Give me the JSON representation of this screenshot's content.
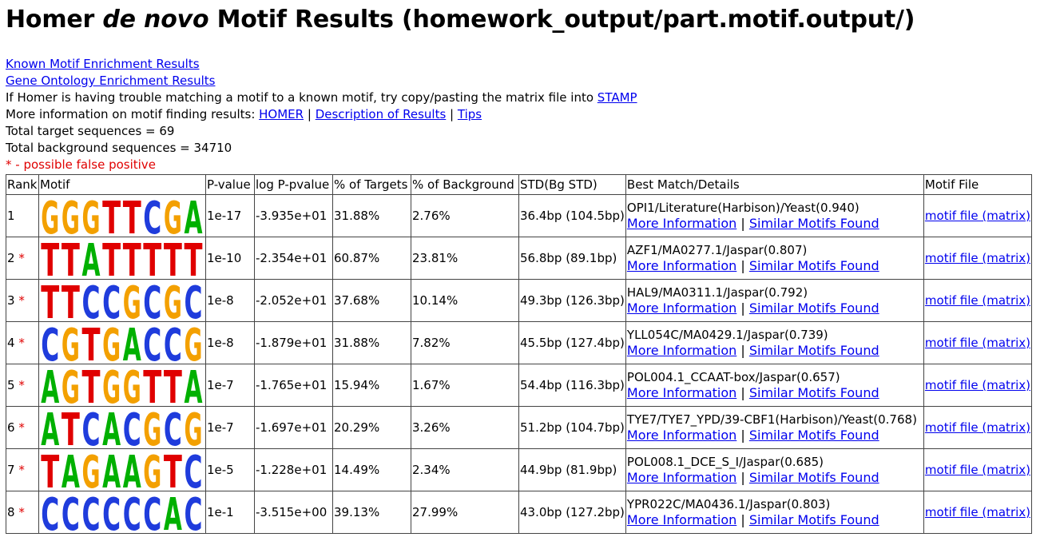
{
  "page": {
    "title_prefix": "Homer ",
    "title_em": "de novo",
    "title_suffix": " Motif Results (homework_output/part.motif.output/)"
  },
  "links": {
    "known": "Known Motif Enrichment Results",
    "go": "Gene Ontology Enrichment Results"
  },
  "info": {
    "stamp_text": "If Homer is having trouble matching a motif to a known motif, try copy/pasting the matrix file into ",
    "stamp_link": "STAMP",
    "more_text": "More information on motif finding results: ",
    "homer_link": "HOMER",
    "sep": " | ",
    "desc_link": "Description of Results",
    "tips_link": "Tips",
    "total_target": "Total target sequences = 69",
    "total_background": "Total background sequences = 34710",
    "false_positive": "* - possible false positive"
  },
  "table": {
    "headers": [
      "Rank",
      "Motif",
      "P-value",
      "log P-pvalue",
      "% of Targets",
      "% of Background",
      "STD(Bg STD)",
      "Best Match/Details",
      "Motif File"
    ],
    "more_info_label": "More Information",
    "similar_label": "Similar Motifs Found",
    "motif_file_label": "motif file (matrix)",
    "rows": [
      {
        "rank": "1",
        "star": "",
        "pvalue": "1e-17",
        "logp": "-3.935e+01",
        "targets": "31.88%",
        "background": "2.76%",
        "std": "36.4bp (104.5bp)",
        "match": "OPI1/Literature(Harbison)/Yeast(0.940)",
        "logo": [
          "G",
          "G",
          "G",
          "T",
          "T",
          "C",
          "G",
          "A"
        ]
      },
      {
        "rank": "2",
        "star": "*",
        "pvalue": "1e-10",
        "logp": "-2.354e+01",
        "targets": "60.87%",
        "background": "23.81%",
        "std": "56.8bp (89.1bp)",
        "match": "AZF1/MA0277.1/Jaspar(0.807)",
        "logo": [
          "T",
          "T",
          "A",
          "T",
          "T",
          "T",
          "T",
          "T"
        ]
      },
      {
        "rank": "3",
        "star": "*",
        "pvalue": "1e-8",
        "logp": "-2.052e+01",
        "targets": "37.68%",
        "background": "10.14%",
        "std": "49.3bp (126.3bp)",
        "match": "HAL9/MA0311.1/Jaspar(0.792)",
        "logo": [
          "T",
          "T",
          "C",
          "C",
          "G",
          "C",
          "G",
          "C"
        ]
      },
      {
        "rank": "4",
        "star": "*",
        "pvalue": "1e-8",
        "logp": "-1.879e+01",
        "targets": "31.88%",
        "background": "7.82%",
        "std": "45.5bp (127.4bp)",
        "match": "YLL054C/MA0429.1/Jaspar(0.739)",
        "logo": [
          "C",
          "G",
          "T",
          "G",
          "A",
          "C",
          "C",
          "G"
        ]
      },
      {
        "rank": "5",
        "star": "*",
        "pvalue": "1e-7",
        "logp": "-1.765e+01",
        "targets": "15.94%",
        "background": "1.67%",
        "std": "54.4bp (116.3bp)",
        "match": "POL004.1_CCAAT-box/Jaspar(0.657)",
        "logo": [
          "A",
          "G",
          "T",
          "G",
          "G",
          "T",
          "T",
          "A"
        ]
      },
      {
        "rank": "6",
        "star": "*",
        "pvalue": "1e-7",
        "logp": "-1.697e+01",
        "targets": "20.29%",
        "background": "3.26%",
        "std": "51.2bp (104.7bp)",
        "match": "TYE7/TYE7_YPD/39-CBF1(Harbison)/Yeast(0.768)",
        "logo": [
          "A",
          "T",
          "C",
          "A",
          "C",
          "G",
          "C",
          "G"
        ]
      },
      {
        "rank": "7",
        "star": "*",
        "pvalue": "1e-5",
        "logp": "-1.228e+01",
        "targets": "14.49%",
        "background": "2.34%",
        "std": "44.9bp (81.9bp)",
        "match": "POL008.1_DCE_S_I/Jaspar(0.685)",
        "logo": [
          "T",
          "A",
          "G",
          "A",
          "A",
          "G",
          "T",
          "C"
        ]
      },
      {
        "rank": "8",
        "star": "*",
        "pvalue": "1e-1",
        "logp": "-3.515e+00",
        "targets": "39.13%",
        "background": "27.99%",
        "std": "43.0bp (127.2bp)",
        "match": "YPR022C/MA0436.1/Jaspar(0.803)",
        "logo": [
          "C",
          "C",
          "C",
          "C",
          "C",
          "C",
          "A",
          "C"
        ]
      }
    ]
  },
  "colors": {
    "A": "#00b000",
    "C": "#1f3cdc",
    "G": "#f3a000",
    "T": "#e00000"
  }
}
